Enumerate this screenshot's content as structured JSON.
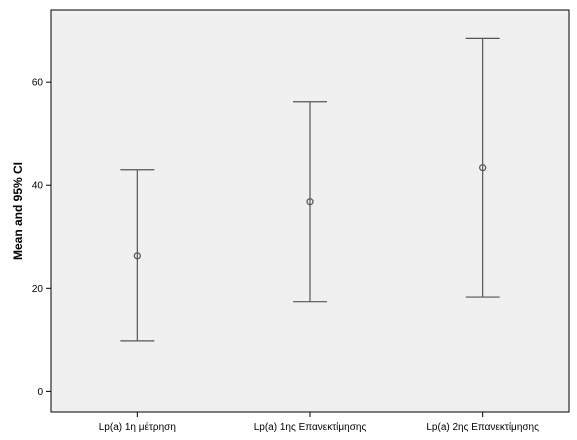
{
  "chart_data": {
    "type": "errorbar",
    "title": "",
    "xlabel": "",
    "ylabel": "Mean and 95% CI",
    "ylim": [
      -4,
      74
    ],
    "yticks": [
      0,
      20,
      40,
      60
    ],
    "grid": false,
    "categories": [
      "Lp(a) 1η μέτρηση",
      "Lp(a) 1ης Επανεκτίμησης",
      "Lp(a)  2ης Επανεκτίμησης"
    ],
    "mean": [
      26.3,
      36.8,
      43.4
    ],
    "ci_lower": [
      9.8,
      17.4,
      18.3
    ],
    "ci_upper": [
      43.0,
      56.2,
      68.5
    ],
    "colors": {
      "plot_background": "#f0f0f0",
      "marks": "#555555",
      "axis": "#000000"
    }
  }
}
